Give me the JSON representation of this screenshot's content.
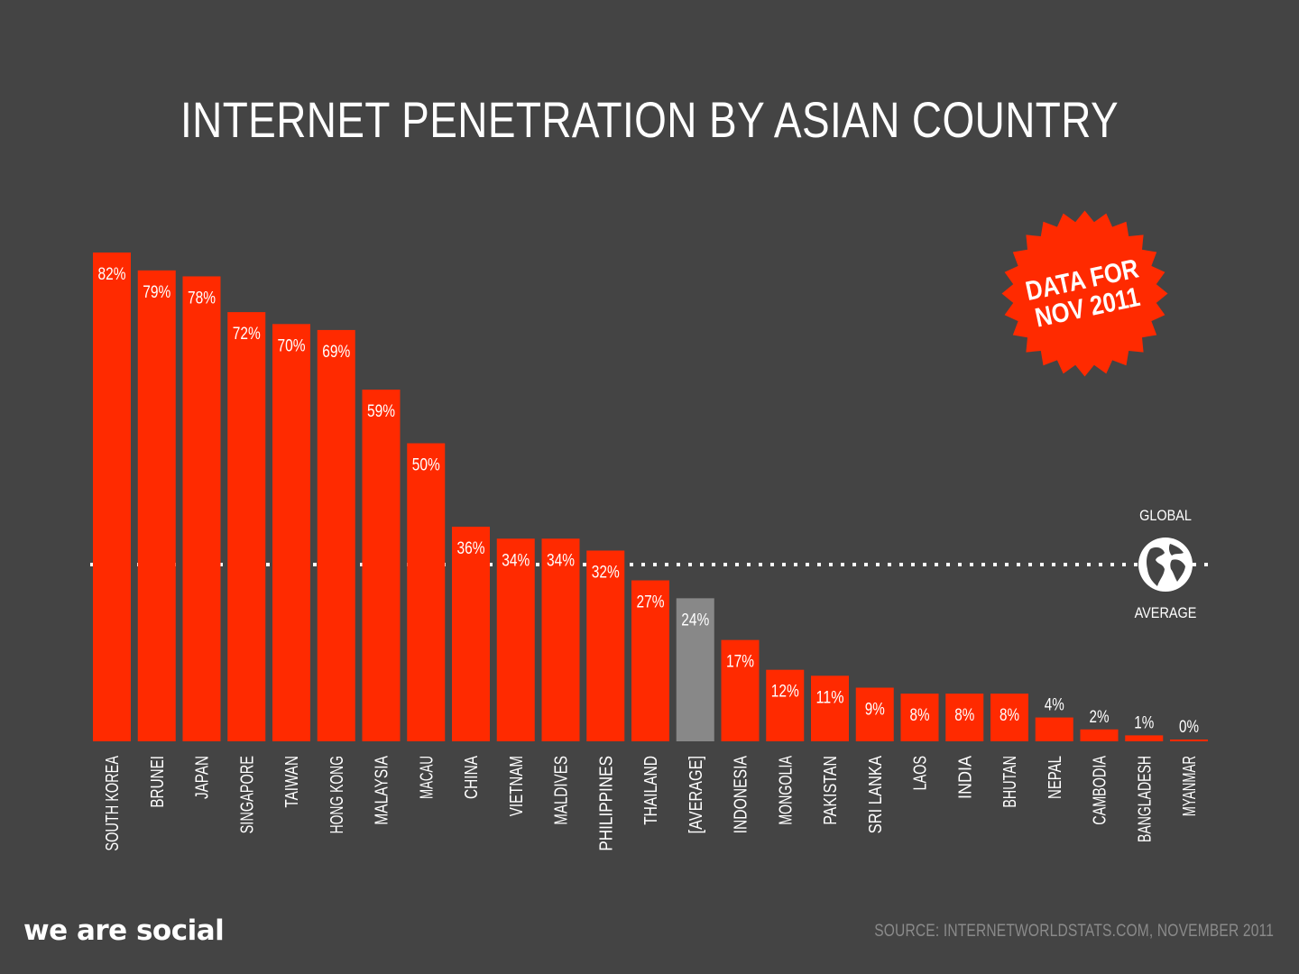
{
  "chart_data": {
    "type": "bar",
    "title": "INTERNET PENETRATION BY ASIAN COUNTRY",
    "categories": [
      "SOUTH KOREA",
      "BRUNEI",
      "JAPAN",
      "SINGAPORE",
      "TAIWAN",
      "HONG KONG",
      "MALAYSIA",
      "MACAU",
      "CHINA",
      "VIETNAM",
      "MALDIVES",
      "PHILIPPINES",
      "THAILAND",
      "[AVERAGE]",
      "INDONESIA",
      "MONGOLIA",
      "PAKISTAN",
      "SRI LANKA",
      "LAOS",
      "INDIA",
      "BHUTAN",
      "NEPAL",
      "CAMBODIA",
      "BANGLADESH",
      "MYANMAR"
    ],
    "values": [
      82,
      79,
      78,
      72,
      70,
      69,
      59,
      50,
      36,
      34,
      34,
      32,
      27,
      24,
      17,
      12,
      11,
      9,
      8,
      8,
      8,
      4,
      2,
      1,
      0
    ],
    "labels": [
      "82%",
      "79%",
      "78%",
      "72%",
      "70%",
      "69%",
      "59%",
      "50%",
      "36%",
      "34%",
      "34%",
      "32%",
      "27%",
      "24%",
      "17%",
      "12%",
      "11%",
      "9%",
      "8%",
      "8%",
      "8%",
      "4%",
      "2%",
      "1%",
      "0%"
    ],
    "highlight_category": "[AVERAGE]",
    "reference_line": {
      "label_top": "GLOBAL",
      "label_bottom": "AVERAGE",
      "value": 30
    },
    "ylim": [
      0,
      82
    ],
    "grid": false,
    "colors": {
      "bar": "#ff2a00",
      "highlight": "#888888",
      "background": "#444444"
    }
  },
  "badge": {
    "line1": "DATA FOR",
    "line2": "NOV 2011",
    "color": "#ff2a00"
  },
  "footer": {
    "brand": "we are social",
    "source": "SOURCE: INTERNETWORLDSTATS.COM, NOVEMBER 2011"
  },
  "globe_icon": "globe-icon"
}
